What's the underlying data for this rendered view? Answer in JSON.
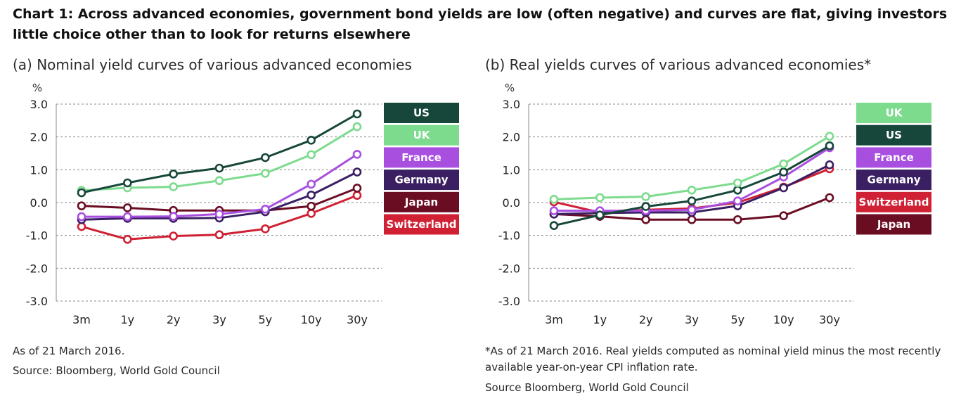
{
  "title": "Chart 1: Across advanced economies, government bond yields are low (often negative) and curves are flat, giving investors little choice other than to look for returns elsewhere",
  "panel_a": {
    "subtitle": "(a) Nominal yield curves of various advanced economies",
    "note": "As of 21 March 2016.",
    "source": "Source: Bloomberg, World Gold Council"
  },
  "panel_b": {
    "subtitle": "(b) Real yields curves of various advanced economies*",
    "note": "*As of 21 March 2016. Real yields computed as nominal yield minus the most recently available year-on-year CPI inflation rate.",
    "source": "Source Bloomberg, World Gold Council"
  },
  "colors": {
    "US": "#17473a",
    "UK": "#7ddb8e",
    "France": "#a84fe0",
    "Germany": "#3a1f62",
    "Japan": "#6b0d22",
    "Switzerland": "#cf2034"
  },
  "chart_data": [
    {
      "type": "line",
      "title": "(a) Nominal yield curves of various advanced economies",
      "ylabel": "%",
      "xlabel": "",
      "categories": [
        "3m",
        "1y",
        "2y",
        "3y",
        "5y",
        "10y",
        "30y"
      ],
      "ylim": [
        -3.0,
        3.0
      ],
      "yticks": [
        3.0,
        2.0,
        1.0,
        0.0,
        -1.0,
        -2.0,
        -3.0
      ],
      "ytick_labels": [
        "3.0",
        "2.0",
        "1.0",
        "0.0",
        "-1.0",
        "-2.0",
        "-3.0"
      ],
      "grid": true,
      "legend_position": "right",
      "legend_order": [
        "US",
        "UK",
        "France",
        "Germany",
        "Japan",
        "Switzerland"
      ],
      "series": [
        {
          "name": "US",
          "values": [
            0.3,
            0.6,
            0.87,
            1.05,
            1.37,
            1.9,
            2.7
          ]
        },
        {
          "name": "UK",
          "values": [
            0.37,
            0.45,
            0.48,
            0.67,
            0.89,
            1.46,
            2.31
          ]
        },
        {
          "name": "France",
          "values": [
            -0.43,
            -0.43,
            -0.42,
            -0.35,
            -0.2,
            0.56,
            1.47
          ]
        },
        {
          "name": "Germany",
          "values": [
            -0.52,
            -0.48,
            -0.48,
            -0.47,
            -0.28,
            0.23,
            0.93
          ]
        },
        {
          "name": "Japan",
          "values": [
            -0.1,
            -0.16,
            -0.24,
            -0.24,
            -0.24,
            -0.11,
            0.44
          ]
        },
        {
          "name": "Switzerland",
          "values": [
            -0.73,
            -1.12,
            -1.02,
            -0.98,
            -0.8,
            -0.33,
            0.22
          ]
        }
      ]
    },
    {
      "type": "line",
      "title": "(b) Real yields curves of various advanced economies*",
      "ylabel": "%",
      "xlabel": "",
      "categories": [
        "3m",
        "1y",
        "2y",
        "3y",
        "5y",
        "10y",
        "30y"
      ],
      "ylim": [
        -3.0,
        3.0
      ],
      "yticks": [
        3.0,
        2.0,
        1.0,
        0.0,
        -1.0,
        -2.0,
        -3.0
      ],
      "ytick_labels": [
        "3.0",
        "2.0",
        "1.0",
        "0.0",
        "-1.0",
        "-2.0",
        "-3.0"
      ],
      "grid": true,
      "legend_position": "right",
      "legend_order": [
        "UK",
        "US",
        "France",
        "Germany",
        "Switzerland",
        "Japan"
      ],
      "series": [
        {
          "name": "UK",
          "values": [
            0.1,
            0.15,
            0.18,
            0.38,
            0.6,
            1.18,
            2.02
          ]
        },
        {
          "name": "US",
          "values": [
            -0.7,
            -0.38,
            -0.12,
            0.05,
            0.38,
            0.93,
            1.73
          ]
        },
        {
          "name": "France",
          "values": [
            -0.25,
            -0.25,
            -0.25,
            -0.22,
            0.05,
            0.78,
            1.67
          ]
        },
        {
          "name": "Germany",
          "values": [
            -0.35,
            -0.32,
            -0.3,
            -0.3,
            -0.1,
            0.45,
            1.15
          ]
        },
        {
          "name": "Switzerland",
          "values": [
            0.02,
            -0.3,
            -0.22,
            -0.18,
            0.0,
            0.47,
            1.03
          ]
        },
        {
          "name": "Japan",
          "values": [
            -0.35,
            -0.42,
            -0.52,
            -0.52,
            -0.52,
            -0.4,
            0.15
          ]
        }
      ]
    }
  ]
}
